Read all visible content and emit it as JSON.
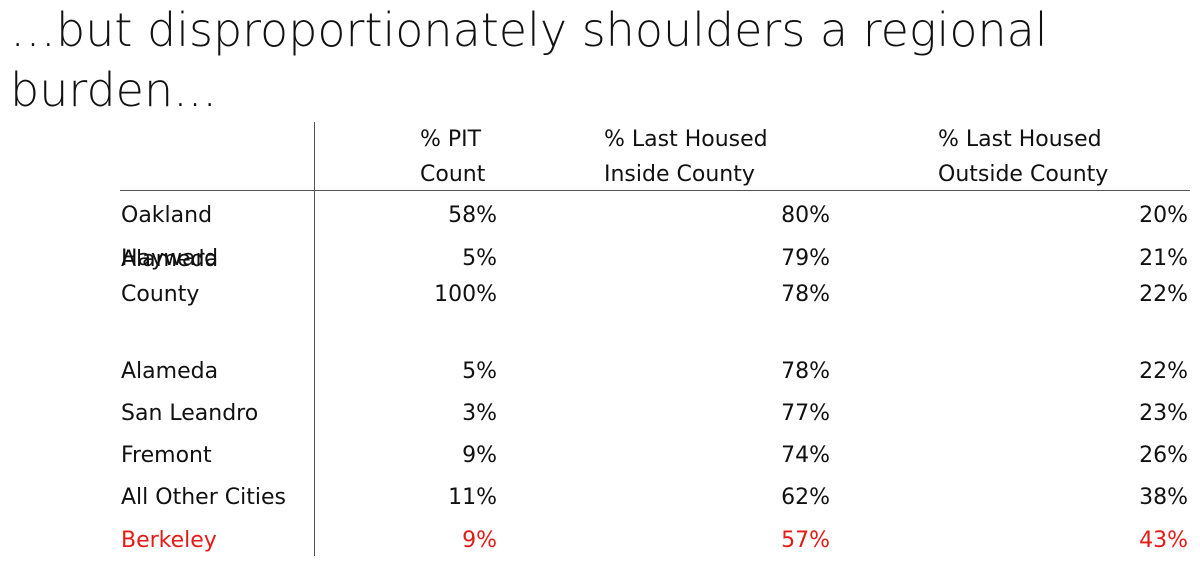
{
  "title": "…but disproportionately shoulders a regional burden...",
  "table": {
    "headers": [
      [
        "% PIT",
        "Count"
      ],
      [
        "% Last Housed",
        "Inside County"
      ],
      [
        "% Last Housed",
        "Outside County"
      ]
    ],
    "rows": [
      [
        [
          "Oakland"
        ],
        "58%",
        "80%",
        "20%"
      ],
      [
        [
          "Hayward"
        ],
        "5%",
        "79%",
        "21%"
      ],
      [
        [
          "Alameda",
          "County"
        ],
        "100%",
        "78%",
        "22%"
      ],
      [
        [
          "Alameda"
        ],
        "5%",
        "78%",
        "22%"
      ],
      [
        [
          "San Leandro"
        ],
        "3%",
        "77%",
        "23%"
      ],
      [
        [
          "Fremont"
        ],
        "9%",
        "74%",
        "26%"
      ],
      [
        [
          "All Other Cities"
        ],
        "11%",
        "62%",
        "38%"
      ],
      [
        [
          "Berkeley"
        ],
        "9%",
        "57%",
        "43%"
      ]
    ],
    "highlight": {
      "row": 7,
      "color": "#e41b17"
    }
  }
}
